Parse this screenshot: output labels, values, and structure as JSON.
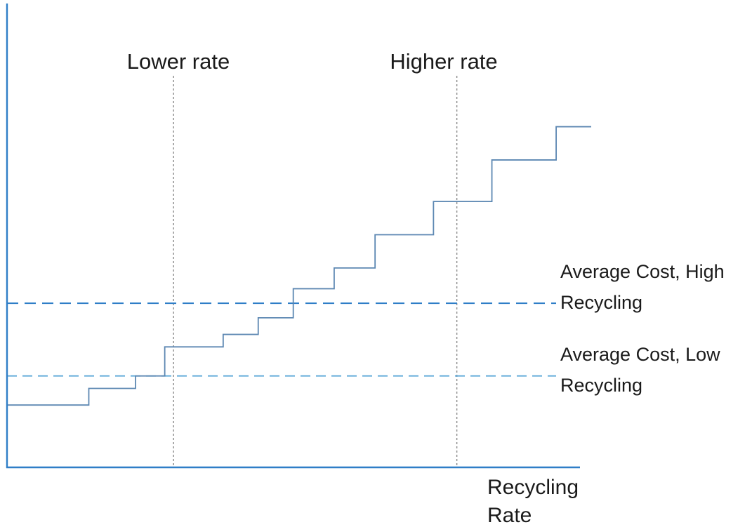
{
  "chart_data": {
    "type": "line",
    "title": "",
    "xlabel": "Recycling Rate",
    "ylabel": "",
    "xlim": [
      0,
      100
    ],
    "ylim": [
      0,
      100
    ],
    "grid": false,
    "series": [
      {
        "step": true,
        "x": [
          0,
          14,
          22,
          27,
          37,
          43,
          49,
          56,
          63,
          73,
          83,
          94,
          100
        ],
        "y": [
          15,
          19,
          22,
          29,
          32,
          36,
          43,
          48,
          56,
          64,
          74,
          82,
          82
        ]
      }
    ],
    "vertical_markers": [
      {
        "label": "Lower rate",
        "x": 28.5,
        "style": "dotted"
      },
      {
        "label": "Higher rate",
        "x": 77.0,
        "style": "dotted"
      }
    ],
    "horizontal_markers": [
      {
        "label_lines": [
          "Average Cost, High",
          "Recycling"
        ],
        "y": 39.5,
        "style": "dashed"
      },
      {
        "label_lines": [
          "Average Cost, Low",
          "Recycling"
        ],
        "y": 22.0,
        "style": "dashed"
      }
    ],
    "colors": {
      "axis": "#2f7ec7",
      "step_line": "#5c87b2",
      "high_dash": "#2f7ec7",
      "low_dash": "#5aa6d8",
      "marker_dotted": "#8a8a8a",
      "text": "#1a1a1a"
    }
  }
}
